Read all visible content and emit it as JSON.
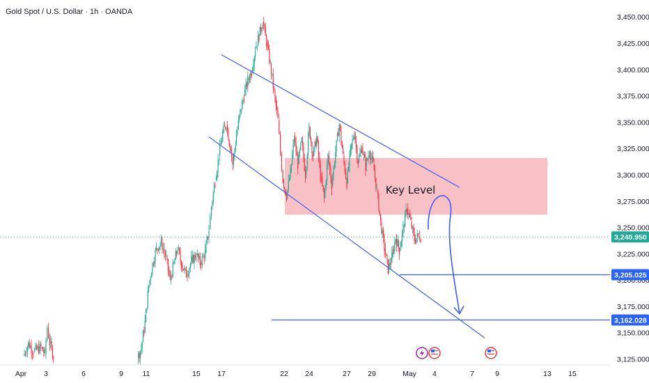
{
  "header": {
    "title": "Gold Spot / U.S. Dollar · 1h · OANDA"
  },
  "chart_data": {
    "type": "candlestick",
    "title": "Gold Spot / U.S. Dollar · 1h · OANDA",
    "xlabel": "",
    "ylabel": "",
    "ylim": [
      3125,
      3460
    ],
    "y_ticks": [
      3125,
      3150,
      3175,
      3200,
      3225,
      3250,
      3275,
      3300,
      3325,
      3350,
      3375,
      3400,
      3425,
      3450
    ],
    "y_tick_labels": [
      "3,125.000",
      "3,150.000",
      "3,175.000",
      "3,200.000",
      "3,225.000",
      "3,250.000",
      "3,275.000",
      "3,300.000",
      "3,325.000",
      "3,350.000",
      "3,375.000",
      "3,400.000",
      "3,425.000",
      "3,450.000"
    ],
    "x_ticks": [
      {
        "label": "Apr",
        "day": 1
      },
      {
        "label": "3",
        "day": 3
      },
      {
        "label": "6",
        "day": 6
      },
      {
        "label": "9",
        "day": 9
      },
      {
        "label": "11",
        "day": 11
      },
      {
        "label": "15",
        "day": 15
      },
      {
        "label": "17",
        "day": 17
      },
      {
        "label": "22",
        "day": 22
      },
      {
        "label": "24",
        "day": 24
      },
      {
        "label": "27",
        "day": 27
      },
      {
        "label": "29",
        "day": 29
      },
      {
        "label": "May",
        "day": 32
      },
      {
        "label": "4",
        "day": 34
      },
      {
        "label": "7",
        "day": 37
      },
      {
        "label": "9",
        "day": 39
      },
      {
        "label": "13",
        "day": 43
      },
      {
        "label": "15",
        "day": 45
      }
    ],
    "price_path": [
      [
        1.2,
        3128
      ],
      [
        1.6,
        3140
      ],
      [
        2.0,
        3132
      ],
      [
        2.6,
        3136
      ],
      [
        2.9,
        3130
      ],
      [
        3.1,
        3155
      ],
      [
        3.3,
        3140
      ],
      [
        3.6,
        3128
      ],
      [
        10.3,
        3126
      ],
      [
        10.6,
        3135
      ],
      [
        10.9,
        3160
      ],
      [
        11.2,
        3195
      ],
      [
        11.5,
        3215
      ],
      [
        11.8,
        3230
      ],
      [
        12.2,
        3236
      ],
      [
        12.6,
        3220
      ],
      [
        12.9,
        3200
      ],
      [
        13.2,
        3215
      ],
      [
        13.5,
        3230
      ],
      [
        13.8,
        3215
      ],
      [
        14.2,
        3205
      ],
      [
        14.6,
        3218
      ],
      [
        15.0,
        3224
      ],
      [
        15.3,
        3216
      ],
      [
        15.7,
        3226
      ],
      [
        16.0,
        3248
      ],
      [
        16.2,
        3270
      ],
      [
        16.5,
        3295
      ],
      [
        16.8,
        3318
      ],
      [
        17.1,
        3340
      ],
      [
        17.4,
        3348
      ],
      [
        17.7,
        3326
      ],
      [
        17.9,
        3310
      ],
      [
        18.2,
        3338
      ],
      [
        18.5,
        3360
      ],
      [
        18.8,
        3375
      ],
      [
        19.1,
        3390
      ],
      [
        19.4,
        3398
      ],
      [
        19.7,
        3420
      ],
      [
        20.0,
        3432
      ],
      [
        20.3,
        3446
      ],
      [
        20.6,
        3425
      ],
      [
        20.9,
        3405
      ],
      [
        21.2,
        3378
      ],
      [
        21.5,
        3352
      ],
      [
        21.7,
        3320
      ],
      [
        21.9,
        3295
      ],
      [
        22.2,
        3280
      ],
      [
        22.5,
        3302
      ],
      [
        22.8,
        3335
      ],
      [
        23.1,
        3310
      ],
      [
        23.4,
        3332
      ],
      [
        23.7,
        3300
      ],
      [
        24.0,
        3345
      ],
      [
        24.3,
        3318
      ],
      [
        24.6,
        3336
      ],
      [
        24.9,
        3298
      ],
      [
        25.2,
        3278
      ],
      [
        25.5,
        3318
      ],
      [
        25.8,
        3290
      ],
      [
        26.1,
        3322
      ],
      [
        26.4,
        3348
      ],
      [
        26.7,
        3318
      ],
      [
        27.0,
        3292
      ],
      [
        27.3,
        3324
      ],
      [
        27.6,
        3340
      ],
      [
        27.9,
        3312
      ],
      [
        28.2,
        3326
      ],
      [
        28.5,
        3308
      ],
      [
        28.8,
        3322
      ],
      [
        29.1,
        3310
      ],
      [
        29.4,
        3285
      ],
      [
        29.7,
        3255
      ],
      [
        30.0,
        3230
      ],
      [
        30.3,
        3210
      ],
      [
        30.6,
        3222
      ],
      [
        30.9,
        3240
      ],
      [
        31.2,
        3228
      ],
      [
        31.5,
        3250
      ],
      [
        31.8,
        3268
      ],
      [
        32.1,
        3255
      ],
      [
        32.4,
        3238
      ],
      [
        32.7,
        3242
      ],
      [
        32.9,
        3240.95
      ]
    ],
    "annotations": {
      "key_level_label": "Key Level",
      "key_level_zone": {
        "day_start": 22,
        "day_end": 43,
        "price_low": 3262,
        "price_high": 3316
      },
      "descending_channel_upper": [
        [
          17,
          3414
        ],
        [
          36,
          3288
        ]
      ],
      "descending_channel_lower": [
        [
          16,
          3336
        ],
        [
          38,
          3145
        ]
      ],
      "support_1": {
        "price": 3205.025,
        "day_start": 31.2
      },
      "support_2": {
        "price": 3162.028,
        "day_start": 21
      },
      "projection_arrow": [
        [
          33.5,
          3248
        ],
        [
          34.5,
          3275
        ],
        [
          36.0,
          3168
        ]
      ]
    },
    "current_price": 3240.95,
    "price_badges": [
      {
        "label": "3,240.950",
        "price": 3240.95,
        "color": "#22ab94"
      },
      {
        "label": "3,205.025",
        "price": 3205.025,
        "color": "#2962ff"
      },
      {
        "label": "3,162.028",
        "price": 3162.028,
        "color": "#2962ff"
      }
    ],
    "events": [
      {
        "day": 33,
        "icon": "lightning-icon"
      },
      {
        "day": 34,
        "icon": "us-flag-icon"
      },
      {
        "day": 38.5,
        "icon": "us-flag-icon"
      }
    ],
    "colors": {
      "up": "#22ab94",
      "down": "#f23645",
      "trendline": "#3d5afe",
      "zone": "#f7c1c6",
      "current_line": "#22ab94"
    }
  }
}
